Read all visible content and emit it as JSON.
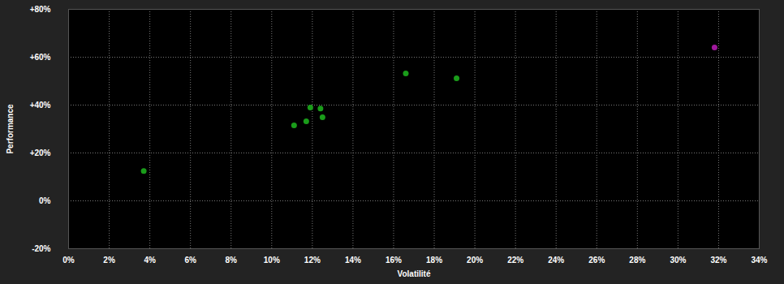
{
  "chart_data": {
    "type": "scatter",
    "x_label": "Volatilité",
    "y_label": "Performance",
    "x": [
      3.7,
      11.1,
      11.7,
      11.9,
      12.4,
      12.5,
      16.6,
      19.1,
      31.8
    ],
    "values": [
      12.5,
      31.5,
      33.2,
      39,
      38.6,
      34.9,
      53.2,
      51.2,
      64.1
    ],
    "colors": [
      "#1a9c1a",
      "#1a9c1a",
      "#1a9c1a",
      "#1a9c1a",
      "#1a9c1a",
      "#1a9c1a",
      "#1a9c1a",
      "#1a9c1a",
      "#a0189c"
    ],
    "marker": "circle",
    "grid": true,
    "xlim": [
      0,
      34
    ],
    "xticks": [
      {
        "value": 0,
        "label": "0%"
      },
      {
        "value": 2,
        "label": "2%"
      },
      {
        "value": 4,
        "label": "4%"
      },
      {
        "value": 6,
        "label": "6%"
      },
      {
        "value": 8,
        "label": "8%"
      },
      {
        "value": 10,
        "label": "10%"
      },
      {
        "value": 12,
        "label": "12%"
      },
      {
        "value": 14,
        "label": "14%"
      },
      {
        "value": 16,
        "label": "16%"
      },
      {
        "value": 18,
        "label": "18%"
      },
      {
        "value": 20,
        "label": "20%"
      },
      {
        "value": 22,
        "label": "22%"
      },
      {
        "value": 24,
        "label": "24%"
      },
      {
        "value": 26,
        "label": "26%"
      },
      {
        "value": 28,
        "label": "28%"
      },
      {
        "value": 30,
        "label": "30%"
      },
      {
        "value": 32,
        "label": "32%"
      },
      {
        "value": 34,
        "label": "34%"
      }
    ],
    "ylim": [
      -20,
      80
    ],
    "yticks": [
      {
        "value": -20,
        "label": "-20%"
      },
      {
        "value": 0,
        "label": "0%"
      },
      {
        "value": 20,
        "label": "+20%"
      },
      {
        "value": 40,
        "label": "+40%"
      },
      {
        "value": 60,
        "label": "+60%"
      },
      {
        "value": 80,
        "label": "+80%"
      }
    ]
  }
}
